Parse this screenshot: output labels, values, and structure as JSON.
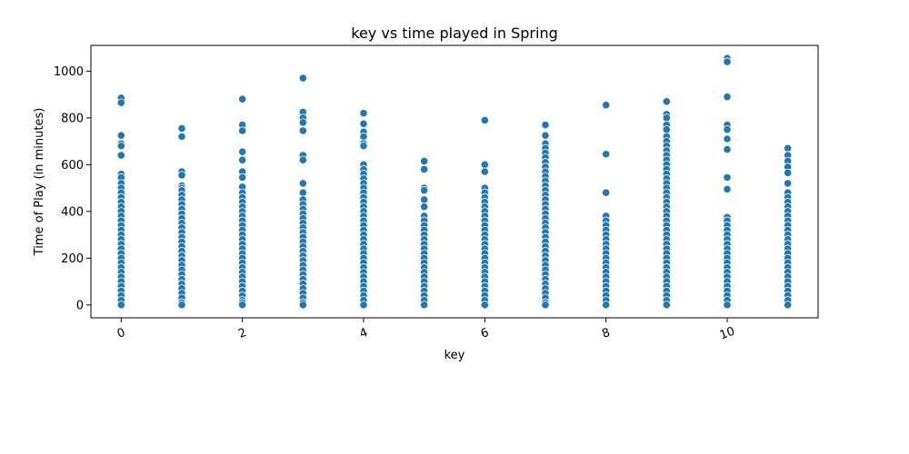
{
  "chart_data": {
    "type": "scatter",
    "title": "key vs time played in Spring",
    "xlabel": "key",
    "ylabel": "Time of Play (in minutes)",
    "xlim": [
      -0.5,
      11.5
    ],
    "ylim": [
      -55,
      1110
    ],
    "xticks": [
      0,
      2,
      4,
      6,
      8,
      10
    ],
    "yticks": [
      0,
      200,
      400,
      600,
      800,
      1000
    ],
    "x_tick_rotation_deg": -20,
    "grid": false,
    "legend": "none",
    "marker_color": "#1f77b4",
    "points": [
      {
        "x": 0,
        "y": [
          885,
          865,
          725,
          690,
          680,
          640,
          560,
          545,
          520,
          500,
          480,
          460,
          440,
          420,
          400,
          380,
          360,
          340,
          320,
          300,
          280,
          260,
          240,
          220,
          200,
          180,
          160,
          140,
          120,
          100,
          80,
          60,
          40,
          20,
          0
        ]
      },
      {
        "x": 1,
        "y": [
          755,
          720,
          570,
          555,
          510,
          500,
          490,
          470,
          450,
          430,
          410,
          390,
          370,
          350,
          330,
          310,
          290,
          270,
          250,
          230,
          210,
          190,
          170,
          150,
          130,
          110,
          90,
          70,
          50,
          30,
          10,
          0
        ]
      },
      {
        "x": 2,
        "y": [
          880,
          770,
          745,
          655,
          620,
          570,
          545,
          505,
          480,
          460,
          440,
          420,
          400,
          380,
          360,
          340,
          320,
          300,
          280,
          260,
          240,
          220,
          200,
          180,
          160,
          140,
          120,
          100,
          80,
          60,
          40,
          20,
          10,
          0
        ]
      },
      {
        "x": 3,
        "y": [
          970,
          825,
          800,
          780,
          745,
          640,
          620,
          520,
          480,
          450,
          430,
          410,
          390,
          370,
          350,
          330,
          310,
          290,
          270,
          250,
          230,
          210,
          190,
          170,
          150,
          130,
          110,
          90,
          70,
          50,
          30,
          10,
          0
        ]
      },
      {
        "x": 4,
        "y": [
          820,
          775,
          740,
          720,
          690,
          680,
          600,
          580,
          560,
          540,
          520,
          500,
          480,
          460,
          440,
          420,
          400,
          380,
          360,
          340,
          320,
          300,
          280,
          260,
          240,
          220,
          200,
          180,
          160,
          140,
          120,
          100,
          80,
          60,
          40,
          20,
          0
        ]
      },
      {
        "x": 5,
        "y": [
          615,
          580,
          500,
          490,
          450,
          420,
          380,
          360,
          340,
          320,
          300,
          280,
          260,
          240,
          220,
          200,
          180,
          160,
          140,
          120,
          100,
          80,
          60,
          40,
          20,
          0
        ]
      },
      {
        "x": 6,
        "y": [
          790,
          600,
          570,
          500,
          480,
          460,
          440,
          420,
          400,
          380,
          360,
          340,
          320,
          300,
          280,
          260,
          240,
          220,
          200,
          180,
          160,
          140,
          120,
          100,
          80,
          60,
          40,
          20,
          0
        ]
      },
      {
        "x": 7,
        "y": [
          770,
          725,
          690,
          670,
          650,
          630,
          610,
          590,
          570,
          550,
          530,
          510,
          490,
          470,
          450,
          430,
          410,
          390,
          370,
          350,
          330,
          310,
          290,
          270,
          250,
          230,
          210,
          190,
          170,
          150,
          130,
          110,
          90,
          70,
          50,
          30,
          10,
          0
        ]
      },
      {
        "x": 8,
        "y": [
          855,
          645,
          480,
          380,
          360,
          340,
          320,
          300,
          280,
          260,
          240,
          220,
          200,
          180,
          160,
          140,
          120,
          100,
          80,
          60,
          40,
          20,
          0
        ]
      },
      {
        "x": 9,
        "y": [
          870,
          815,
          800,
          770,
          750,
          720,
          700,
          680,
          660,
          640,
          620,
          600,
          580,
          560,
          540,
          520,
          500,
          480,
          460,
          440,
          420,
          400,
          380,
          360,
          340,
          320,
          300,
          280,
          260,
          240,
          220,
          200,
          180,
          160,
          140,
          120,
          100,
          80,
          60,
          40,
          20,
          0
        ]
      },
      {
        "x": 10,
        "y": [
          1055,
          1040,
          890,
          770,
          750,
          710,
          665,
          545,
          495,
          375,
          360,
          340,
          320,
          300,
          280,
          260,
          240,
          220,
          200,
          180,
          160,
          140,
          120,
          100,
          80,
          60,
          40,
          20,
          0
        ]
      },
      {
        "x": 11,
        "y": [
          670,
          640,
          615,
          590,
          565,
          520,
          480,
          460,
          440,
          420,
          400,
          380,
          360,
          340,
          320,
          300,
          280,
          260,
          240,
          220,
          200,
          180,
          160,
          140,
          120,
          100,
          80,
          60,
          40,
          20,
          0
        ]
      }
    ]
  }
}
